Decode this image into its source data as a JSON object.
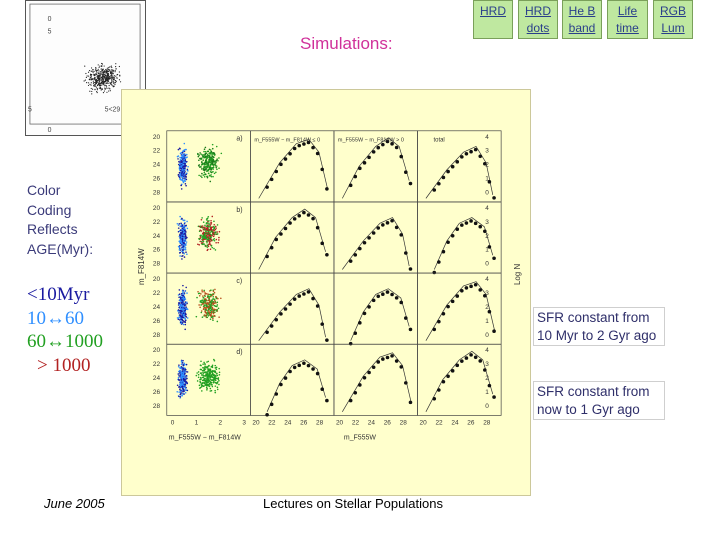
{
  "thumbnail": {
    "y_ticks": [
      "0",
      "5",
      "0"
    ],
    "x_ticks": [
      "5",
      "5<29"
    ]
  },
  "nav": [
    {
      "label": "HRD",
      "name": "nav-hrd"
    },
    {
      "label": "HRD dots",
      "name": "nav-hrd-dots"
    },
    {
      "label": "He B band",
      "name": "nav-he-b-band"
    },
    {
      "label": "Life time",
      "name": "nav-life-time"
    },
    {
      "label": "RGB Lum",
      "name": "nav-rgb-lum"
    }
  ],
  "title": "Simulations:",
  "legend": {
    "caption_lines": [
      "Color",
      "Coding",
      "Reflects",
      "AGE(Myr):"
    ],
    "ages": [
      {
        "label": "<10Myr",
        "color": "#1a1aa0"
      },
      {
        "label": "10↔60",
        "color": "#2f8fff"
      },
      {
        "label": "60↔1000",
        "color": "#22a022"
      },
      {
        "label": "> 1000",
        "color": "#b22222"
      }
    ]
  },
  "notes": [
    {
      "lines": [
        "SFR constant from",
        "10 Myr to 2 Gyr ago"
      ]
    },
    {
      "lines": [
        "SFR constant from",
        "now to 1 Gyr ago"
      ]
    }
  ],
  "figure": {
    "cmd_y_ticks": [
      "20",
      "22",
      "24",
      "26",
      "28"
    ],
    "cmd_x_ticks": [
      "0",
      "1",
      "2",
      "3"
    ],
    "lf_x_ticks": [
      "20",
      "22",
      "24",
      "26",
      "28"
    ],
    "right_y_ticks": [
      "4",
      "3",
      "2",
      "1",
      "0"
    ],
    "panel_labels": [
      "a)",
      "b)",
      "c)",
      "d)"
    ],
    "ylabel": "m_F814W",
    "xlabel_cmd": "m_F555W − m_F814W",
    "xlabel_lf": "m_F555W",
    "right_label": "Log N",
    "col_labels": [
      "m_F555W − m_F814W ≤ 0",
      "m_F555W − m_F814W > 0",
      "total"
    ]
  },
  "footer": {
    "date": "June 2005",
    "course": "Lectures on Stellar Populations"
  }
}
